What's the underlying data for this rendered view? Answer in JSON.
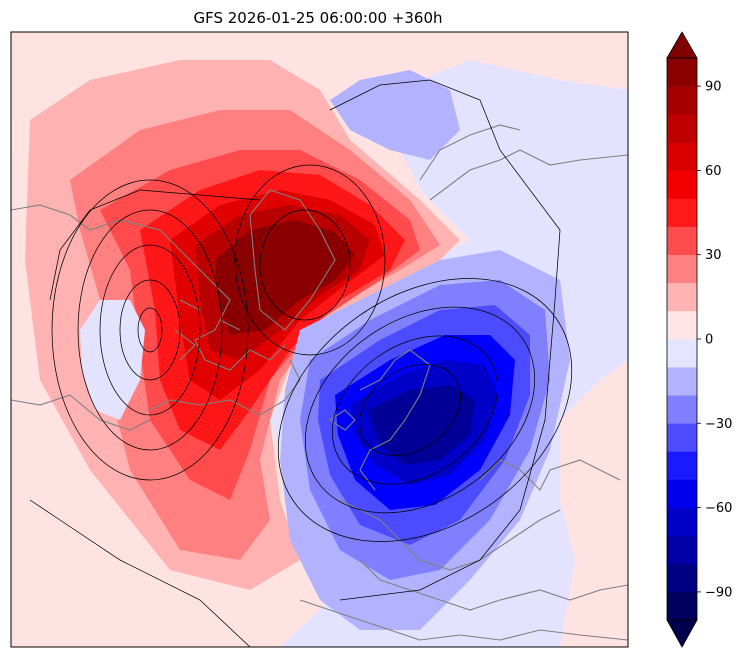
{
  "figure": {
    "title": "GFS 2026-01-25 06:00:00 +360h"
  },
  "colorbar": {
    "ticks": [
      {
        "value": 90,
        "label": "90"
      },
      {
        "value": 60,
        "label": "60"
      },
      {
        "value": 30,
        "label": "30"
      },
      {
        "value": 0,
        "label": "0"
      },
      {
        "value": -30,
        "label": "−30"
      },
      {
        "value": -60,
        "label": "−60"
      },
      {
        "value": -90,
        "label": "−90"
      }
    ],
    "range": [
      -100,
      100
    ],
    "extend": "both",
    "colormap": "seismic"
  },
  "map": {
    "projection": "north-polar-stereographic",
    "background_color": "#e3e3ff",
    "coastline_color": "#808080",
    "contour_line_color": "#000000"
  }
}
